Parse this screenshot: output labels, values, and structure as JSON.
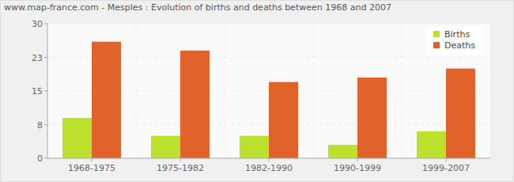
{
  "chart_data": {
    "type": "bar",
    "title": "www.map-france.com - Mesples : Evolution of births and deaths between 1968 and 2007",
    "categories": [
      "1968-1975",
      "1975-1982",
      "1982-1990",
      "1990-1999",
      "1999-2007"
    ],
    "series": [
      {
        "name": "Births",
        "color": "#bbe12c",
        "values": [
          9,
          5,
          5,
          3,
          6
        ]
      },
      {
        "name": "Deaths",
        "color": "#e0632c",
        "values": [
          26,
          24,
          17,
          18,
          20
        ]
      }
    ],
    "ylim": [
      0,
      30
    ],
    "yticks": [
      0,
      {
        "value": 7.5,
        "label": "8"
      },
      15,
      {
        "value": 22.5,
        "label": "23"
      },
      30
    ],
    "grid": true,
    "legend": "top-right"
  }
}
